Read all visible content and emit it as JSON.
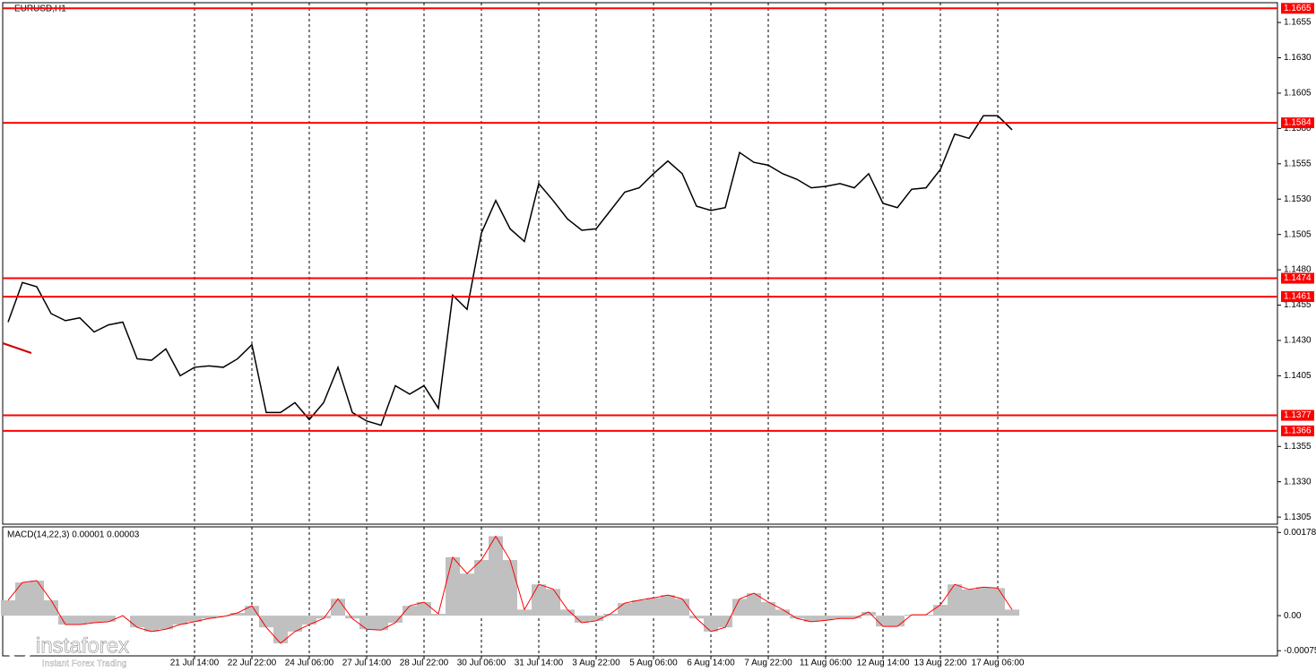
{
  "chart_data": [
    {
      "type": "line",
      "title": "EURUSD,H1",
      "color": "#000000",
      "categories": [
        null,
        null,
        null,
        null,
        null,
        null,
        null,
        null,
        null,
        null,
        null,
        null,
        null,
        "21 Jul 14:00",
        null,
        null,
        null,
        "22 Jul 22:00",
        null,
        null,
        null,
        "24 Jul 06:00",
        null,
        null,
        null,
        "27 Jul 14:00",
        null,
        null,
        null,
        "28 Jul 22:00",
        null,
        null,
        null,
        "30 Jul 06:00",
        null,
        null,
        null,
        "31 Jul 14:00",
        null,
        null,
        null,
        "3 Aug 22:00",
        null,
        null,
        null,
        "5 Aug 06:00",
        null,
        null,
        null,
        "6 Aug 14:00",
        null,
        null,
        null,
        "7 Aug 22:00",
        null,
        null,
        null,
        "11 Aug 06:00",
        null,
        null,
        null,
        "12 Aug 14:00",
        null,
        null,
        null,
        "13 Aug 22:00",
        null,
        null,
        null,
        "17 Aug 06:00",
        null
      ],
      "values": [
        1.1443,
        1.1471,
        1.1468,
        1.1449,
        1.1444,
        1.1446,
        1.1436,
        1.1441,
        1.1443,
        1.1417,
        1.1416,
        1.1424,
        1.1405,
        1.1411,
        1.1412,
        1.1411,
        1.1417,
        1.1427,
        1.1379,
        1.1379,
        1.1386,
        1.1374,
        1.1386,
        1.1411,
        1.1379,
        1.1373,
        1.137,
        1.1398,
        1.1392,
        1.1398,
        1.1382,
        1.1462,
        1.1452,
        1.1506,
        1.1529,
        1.1509,
        1.15,
        1.1541,
        1.1529,
        1.1516,
        1.1508,
        1.1509,
        1.1522,
        1.1535,
        1.1538,
        1.1548,
        1.1557,
        1.1548,
        1.1525,
        1.1522,
        1.1524,
        1.1563,
        1.1556,
        1.1554,
        1.1548,
        1.1544,
        1.1538,
        1.1539,
        1.1541,
        1.1538,
        1.1548,
        1.1527,
        1.1524,
        1.1537,
        1.1538,
        1.1551,
        1.1576,
        1.1573,
        1.1589,
        1.1589,
        1.1579
      ],
      "ylim": [
        1.13,
        1.1669
      ],
      "yticks": [
        1.1655,
        {
          "value": 1.163,
          "label": "1.1630"
        },
        1.1605,
        {
          "value": 1.158,
          "label": "1.1580"
        },
        1.1555,
        {
          "value": 1.153,
          "label": "1.1530"
        },
        1.1505,
        {
          "value": 1.148,
          "label": "1.1480"
        },
        1.1455,
        {
          "value": 1.143,
          "label": "1.1430"
        },
        1.1405,
        1.1355,
        {
          "value": 1.133,
          "label": "1.1330"
        },
        1.1305
      ],
      "levels": [
        1.1665,
        1.1584,
        1.1474,
        1.1461,
        1.1377,
        1.1366
      ],
      "level_color": "#ff0000",
      "grid": true
    },
    {
      "type": "area",
      "title": "MACD(14,22,3) 0.00001 0.00003",
      "color": "#c0c0c0",
      "line_color": "#ff0000",
      "values": [
        0.00033,
        0.00071,
        0.00075,
        0.00033,
        -0.00019,
        -0.00019,
        -0.00015,
        -0.00013,
        0,
        -0.00025,
        -0.00034,
        -0.00029,
        -0.00019,
        -0.00013,
        -6e-05,
        -2e-05,
        6e-05,
        0.00021,
        -0.00025,
        -0.00059,
        -0.00034,
        -0.00019,
        -6e-05,
        0.00036,
        -6e-05,
        -0.00029,
        -0.00031,
        -0.00015,
        0.00021,
        0.00029,
        4e-05,
        0.00125,
        0.0009,
        0.00119,
        0.0017,
        0.00119,
        0.00013,
        0.00067,
        0.00057,
        0.00013,
        -0.00015,
        -0.00011,
        4e-05,
        0.00027,
        0.00033,
        0.00038,
        0.00044,
        0.00036,
        -6e-05,
        -0.00034,
        -0.00025,
        0.00036,
        0.00048,
        0.00029,
        0.00013,
        -6e-05,
        -0.00013,
        -0.0001,
        -6e-05,
        -6e-05,
        8e-05,
        -0.00023,
        -0.00023,
        2e-05,
        2e-05,
        0.00023,
        0.00067,
        0.00056,
        0.00061,
        0.00059,
        0.00013
      ],
      "ylim": [
        -0.00086,
        0.0019
      ],
      "yticks": [
        0.00178,
        {
          "value": 0,
          "label": "0.00"
        },
        -0.00075
      ]
    }
  ],
  "brand": {
    "name": "instaforex",
    "tagline": "Instant Forex Trading"
  }
}
